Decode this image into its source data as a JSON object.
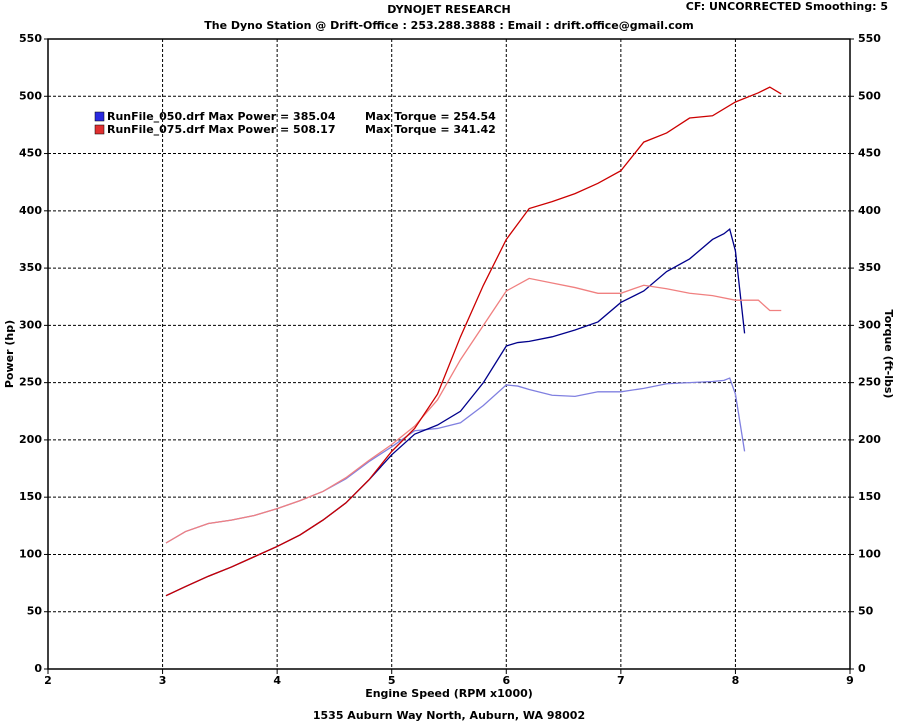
{
  "chart_data": {
    "type": "line",
    "title": "DYNOJET RESEARCH",
    "subtitle": "The Dyno Station @ Drift-Office : 253.288.3888 : Email : drift.office@gmail.com",
    "corner_note": "CF: UNCORRECTED  Smoothing: 5",
    "footer": "1535 Auburn Way North, Auburn, WA 98002",
    "xlabel": "Engine Speed (RPM x1000)",
    "ylabel": "Power (hp)",
    "y2label": "Torque (ft-lbs)",
    "xlim": [
      2,
      9
    ],
    "xticks": [
      2,
      3,
      4,
      5,
      6,
      7,
      8,
      9
    ],
    "ylim": [
      0,
      550
    ],
    "yticks": [
      0,
      50,
      100,
      150,
      200,
      250,
      300,
      350,
      400,
      450,
      500,
      550
    ],
    "y2lim": [
      0,
      550
    ],
    "y2ticks": [
      0,
      50,
      100,
      150,
      200,
      250,
      300,
      350,
      400,
      450,
      500,
      550
    ],
    "grid": true,
    "runs": [
      {
        "label": "RunFile_050.drf Max Power = 385.04",
        "torque_label": "Max Torque = 254.54",
        "color": "#2a2ae0",
        "x": [
          3.03,
          3.2,
          3.4,
          3.6,
          3.8,
          4.0,
          4.2,
          4.4,
          4.6,
          4.8,
          5.0,
          5.2,
          5.4,
          5.6,
          5.8,
          6.0,
          6.1,
          6.2,
          6.4,
          6.6,
          6.8,
          7.0,
          7.2,
          7.4,
          7.6,
          7.8,
          7.9,
          7.95,
          8.0,
          8.08
        ],
        "power": {
          "color": "#00008b",
          "values": [
            64,
            72,
            81,
            89,
            98,
            107,
            117,
            130,
            145,
            165,
            187,
            205,
            213,
            225,
            250,
            282,
            285,
            286,
            290,
            296,
            303,
            320,
            330,
            347,
            358,
            375,
            380,
            384,
            365,
            293
          ]
        },
        "torque": {
          "color": "#8080e0",
          "values": [
            110,
            120,
            127,
            130,
            134,
            140,
            147,
            155,
            166,
            181,
            194,
            208,
            210,
            215,
            230,
            248,
            247,
            244,
            239,
            238,
            242,
            242,
            245,
            249,
            250,
            251,
            252,
            254,
            240,
            190
          ]
        }
      },
      {
        "label": "RunFile_075.drf Max Power = 508.17",
        "torque_label": "Max Torque = 341.42",
        "color": "#e03030",
        "x": [
          3.03,
          3.2,
          3.4,
          3.6,
          3.8,
          4.0,
          4.2,
          4.4,
          4.6,
          4.8,
          5.0,
          5.2,
          5.4,
          5.6,
          5.8,
          6.0,
          6.2,
          6.4,
          6.6,
          6.8,
          7.0,
          7.2,
          7.4,
          7.6,
          7.8,
          8.0,
          8.2,
          8.3,
          8.4
        ],
        "power": {
          "color": "#cc0000",
          "values": [
            64,
            72,
            81,
            89,
            98,
            107,
            117,
            130,
            145,
            165,
            190,
            210,
            240,
            290,
            335,
            375,
            402,
            408,
            415,
            424,
            435,
            460,
            468,
            481,
            483,
            495,
            503,
            508,
            502
          ]
        },
        "torque": {
          "color": "#f08080",
          "values": [
            110,
            120,
            127,
            130,
            134,
            140,
            147,
            155,
            167,
            182,
            196,
            212,
            235,
            270,
            300,
            330,
            341,
            337,
            333,
            328,
            328,
            335,
            332,
            328,
            326,
            322,
            322,
            313,
            313
          ]
        }
      }
    ]
  }
}
